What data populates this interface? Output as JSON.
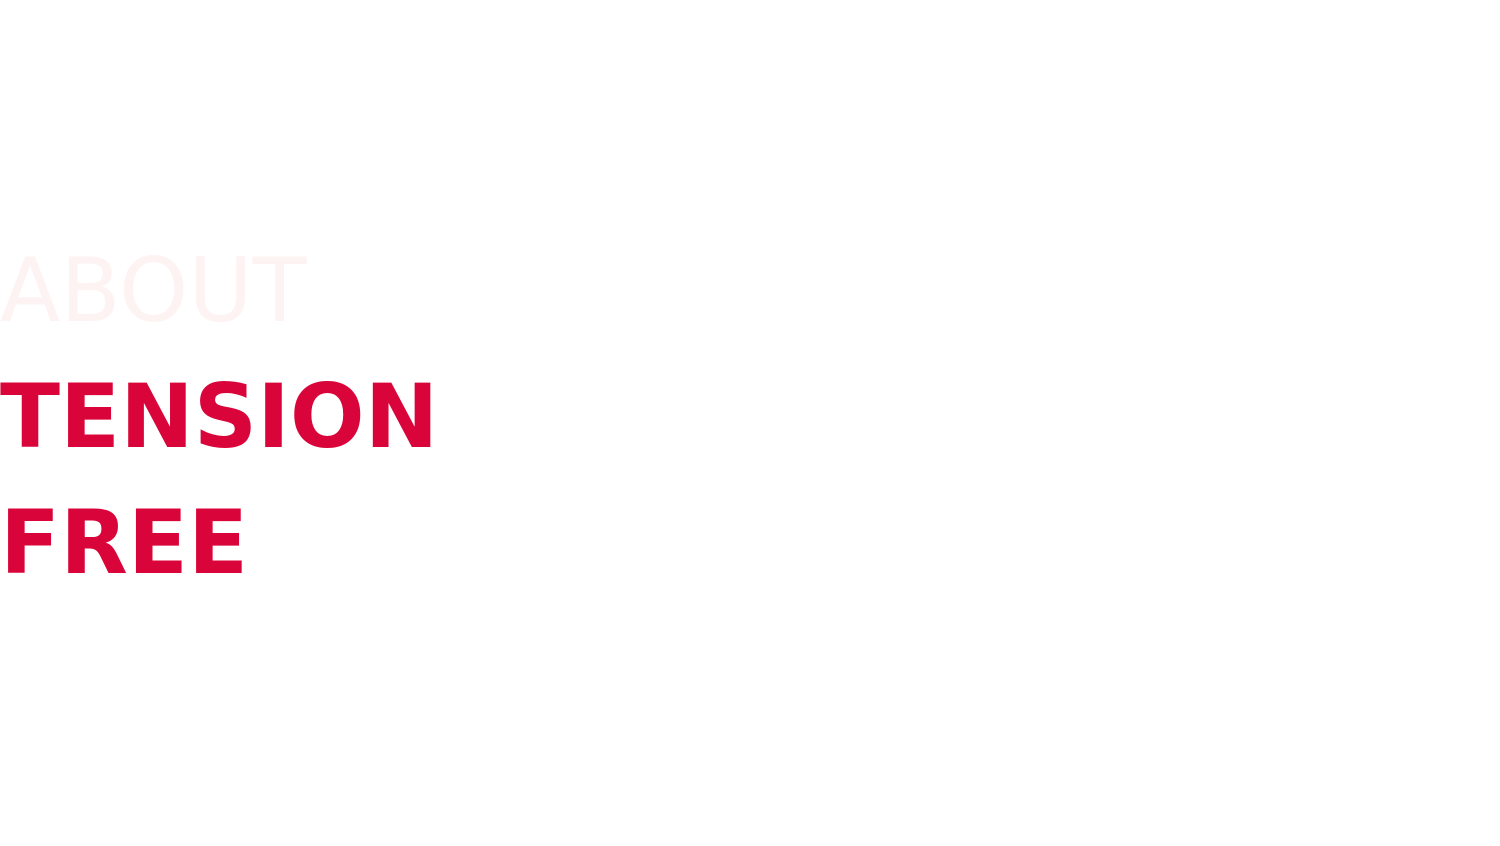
{
  "heading": {
    "line1": "ABOUT",
    "line2": "TENSION",
    "line3": "FREE"
  },
  "colors": {
    "background": "#ffffff",
    "faded_text": "#fdf3f3",
    "accent": "#d9053a"
  }
}
